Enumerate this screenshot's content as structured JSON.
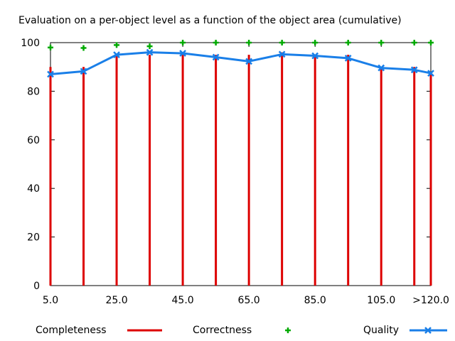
{
  "chart_data": {
    "type": "bar",
    "title": "Evaluation on a per-object level as a function of the object area (cumulative)",
    "xlabel": "",
    "ylabel": "",
    "x": [
      5,
      15,
      25,
      35,
      45,
      55,
      65,
      75,
      85,
      95,
      105,
      115,
      120
    ],
    "x_tick_values": [
      5,
      25,
      45,
      65,
      85,
      105,
      120
    ],
    "x_tick_labels": [
      "5.0",
      "25.0",
      "45.0",
      "65.0",
      "85.0",
      "105.0",
      ">120.0"
    ],
    "xlim": [
      5,
      120
    ],
    "y_ticks": [
      "0",
      "20",
      "40",
      "60",
      "80",
      "100"
    ],
    "ylim": [
      0,
      100
    ],
    "grid": false,
    "legend_position": "bottom",
    "series": [
      {
        "name": "Completeness",
        "mark": "impulse",
        "color": "#dd0000",
        "values": [
          90,
          90,
          95,
          95,
          95,
          95,
          95,
          96,
          95,
          95,
          90,
          90,
          88
        ]
      },
      {
        "name": "Correctness",
        "mark": "point",
        "color": "#00aa00",
        "values": [
          98,
          97.8,
          99,
          98.5,
          100,
          100,
          100,
          100,
          100,
          100,
          100,
          100,
          100
        ]
      },
      {
        "name": "Quality",
        "mark": "linepoint",
        "color": "#1a7fe8",
        "values": [
          87,
          88.2,
          95,
          96,
          95.6,
          94,
          92.3,
          95.2,
          94.6,
          93.6,
          89.6,
          88.8,
          87.4
        ]
      }
    ]
  }
}
